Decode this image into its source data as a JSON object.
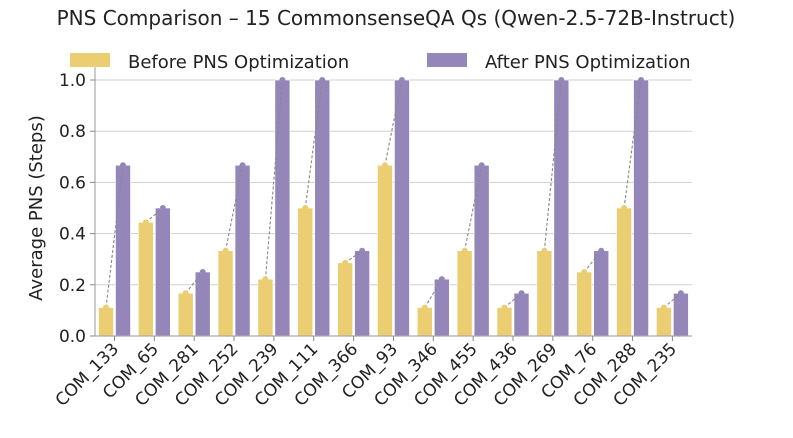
{
  "chart_data": {
    "type": "bar",
    "title": "PNS Comparison – 15 CommonsenseQA Qs (Qwen-2.5-72B-Instruct)",
    "xlabel": "",
    "ylabel": "Average PNS (Steps)",
    "ylim": [
      0,
      1.05
    ],
    "yticks": [
      "0.0",
      "0.2",
      "0.4",
      "0.6",
      "0.8",
      "1.0"
    ],
    "grid": "horizontal",
    "legend_position": "top",
    "categories": [
      "COM_133",
      "COM_65",
      "COM_281",
      "COM_252",
      "COM_239",
      "COM_111",
      "COM_366",
      "COM_93",
      "COM_346",
      "COM_455",
      "COM_436",
      "COM_269",
      "COM_76",
      "COM_288",
      "COM_235"
    ],
    "series": [
      {
        "name": "Before PNS Optimization",
        "color": "#ebcd72",
        "values": [
          0.111,
          0.444,
          0.167,
          0.333,
          0.222,
          0.5,
          0.286,
          0.667,
          0.111,
          0.333,
          0.111,
          0.333,
          0.25,
          0.5,
          0.111
        ]
      },
      {
        "name": "After PNS Optimization",
        "color": "#9486b8",
        "values": [
          0.667,
          0.5,
          0.25,
          0.667,
          1.0,
          1.0,
          0.333,
          1.0,
          0.222,
          0.667,
          0.167,
          1.0,
          0.333,
          1.0,
          0.167
        ]
      }
    ]
  }
}
